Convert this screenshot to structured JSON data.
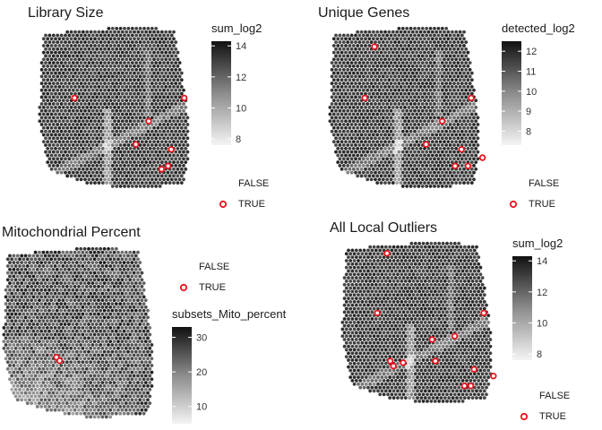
{
  "colors": {
    "outlier": "#e8141c",
    "gradient_low": "#f4f4f4",
    "gradient_high": "#111111"
  },
  "chart_data": [
    {
      "id": "library",
      "type": "scatter",
      "title": "Library Size",
      "legend_color_title": "sum_log2",
      "color_ticks": [
        8,
        10,
        12,
        14
      ],
      "color_range": [
        7.6,
        14.3
      ],
      "outlier_legend": [
        "FALSE",
        "TRUE"
      ],
      "outliers_count": 7
    },
    {
      "id": "genes",
      "type": "scatter",
      "title": "Unique Genes",
      "legend_color_title": "detected_log2",
      "color_ticks": [
        8,
        9,
        10,
        11,
        12
      ],
      "color_range": [
        7.3,
        12.5
      ],
      "outlier_legend": [
        "FALSE",
        "TRUE"
      ],
      "outliers_count": 9
    },
    {
      "id": "mito",
      "type": "scatter",
      "title": "Mitochondrial Percent",
      "legend_color_title": "subsets_Mito_percent",
      "color_ticks": [
        10,
        20,
        30
      ],
      "color_range": [
        5,
        33
      ],
      "outlier_legend": [
        "FALSE",
        "TRUE"
      ],
      "outliers_count": 2
    },
    {
      "id": "all",
      "type": "scatter",
      "title": "All Local Outliers",
      "legend_color_title": "sum_log2",
      "color_ticks": [
        8,
        10,
        12,
        14
      ],
      "color_range": [
        7.6,
        14.3
      ],
      "outlier_legend": [
        "FALSE",
        "TRUE"
      ],
      "outliers_count": 13
    }
  ]
}
